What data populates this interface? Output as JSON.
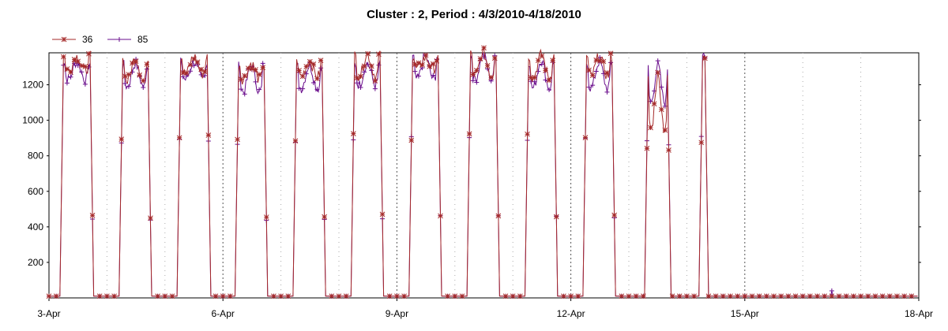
{
  "chart_data": {
    "type": "line",
    "title": "Cluster : 2, Period : 4/3/2010-4/18/2010",
    "xlabel": "",
    "ylabel": "",
    "x_unit": "day",
    "x_range": [
      "2010-04-03",
      "2010-04-18"
    ],
    "x_ticks": [
      "3-Apr",
      "6-Apr",
      "9-Apr",
      "12-Apr",
      "15-Apr",
      "18-Apr"
    ],
    "ylim": [
      0,
      1380
    ],
    "y_ticks": [
      200,
      400,
      600,
      800,
      1000,
      1200
    ],
    "grid": "vertical dotted",
    "legend_position": "top-left",
    "series": [
      {
        "name": "36",
        "color": "#a52a2a",
        "marker": "asterisk",
        "daily_active": [
          {
            "date": "2010-04-03",
            "start_hour": 4.5,
            "end_hour": 18.5,
            "peak": 1360,
            "dip": 1280
          },
          {
            "date": "2010-04-04",
            "start_hour": 5.0,
            "end_hour": 18.5,
            "peak": 1350,
            "dip": 1220
          },
          {
            "date": "2010-04-05",
            "start_hour": 5.0,
            "end_hour": 19.0,
            "peak": 1360,
            "dip": 1260
          },
          {
            "date": "2010-04-06",
            "start_hour": 5.0,
            "end_hour": 18.5,
            "peak": 1320,
            "dip": 1230
          },
          {
            "date": "2010-04-07",
            "start_hour": 5.0,
            "end_hour": 18.5,
            "peak": 1330,
            "dip": 1250
          },
          {
            "date": "2010-04-08",
            "start_hour": 5.0,
            "end_hour": 18.5,
            "peak": 1370,
            "dip": 1250
          },
          {
            "date": "2010-04-09",
            "start_hour": 5.0,
            "end_hour": 18.5,
            "peak": 1350,
            "dip": 1290
          },
          {
            "date": "2010-04-10",
            "start_hour": 5.0,
            "end_hour": 18.5,
            "peak": 1380,
            "dip": 1250
          },
          {
            "date": "2010-04-11",
            "start_hour": 5.0,
            "end_hour": 18.5,
            "peak": 1370,
            "dip": 1240
          },
          {
            "date": "2010-04-12",
            "start_hour": 5.0,
            "end_hour": 18.5,
            "peak": 1360,
            "dip": 1250
          },
          {
            "date": "2010-04-13",
            "start_hour": 6.5,
            "end_hour": 17.5,
            "peak": 1250,
            "dip": 950
          },
          {
            "date": "2010-04-14",
            "start_hour": 5.0,
            "end_hour": 9.0,
            "peak": 1380,
            "dip": 1330
          }
        ],
        "night_value": 10
      },
      {
        "name": "85",
        "color": "#6a0d8c",
        "marker": "plus",
        "daily_active": [
          {
            "date": "2010-04-03",
            "start_hour": 4.5,
            "end_hour": 18.5,
            "peak": 1330,
            "dip": 1230
          },
          {
            "date": "2010-04-04",
            "start_hour": 5.0,
            "end_hour": 18.5,
            "peak": 1320,
            "dip": 1190
          },
          {
            "date": "2010-04-05",
            "start_hour": 5.0,
            "end_hour": 19.0,
            "peak": 1330,
            "dip": 1230
          },
          {
            "date": "2010-04-06",
            "start_hour": 5.0,
            "end_hour": 18.5,
            "peak": 1310,
            "dip": 1160
          },
          {
            "date": "2010-04-07",
            "start_hour": 5.0,
            "end_hour": 18.5,
            "peak": 1310,
            "dip": 1180
          },
          {
            "date": "2010-04-08",
            "start_hour": 5.0,
            "end_hour": 18.5,
            "peak": 1320,
            "dip": 1200
          },
          {
            "date": "2010-04-09",
            "start_hour": 5.0,
            "end_hour": 18.5,
            "peak": 1360,
            "dip": 1230
          },
          {
            "date": "2010-04-10",
            "start_hour": 5.0,
            "end_hour": 18.5,
            "peak": 1370,
            "dip": 1230
          },
          {
            "date": "2010-04-11",
            "start_hour": 5.0,
            "end_hour": 18.5,
            "peak": 1340,
            "dip": 1180
          },
          {
            "date": "2010-04-12",
            "start_hour": 5.0,
            "end_hour": 18.5,
            "peak": 1330,
            "dip": 1180
          },
          {
            "date": "2010-04-13",
            "start_hour": 6.5,
            "end_hour": 17.5,
            "peak": 1310,
            "dip": 1100
          },
          {
            "date": "2010-04-14",
            "start_hour": 5.0,
            "end_hour": 9.0,
            "peak": 1370,
            "dip": 1330
          }
        ],
        "night_value": 10,
        "isolated_points": [
          {
            "date": "2010-04-16",
            "hour": 12,
            "value": 40
          }
        ]
      }
    ]
  }
}
